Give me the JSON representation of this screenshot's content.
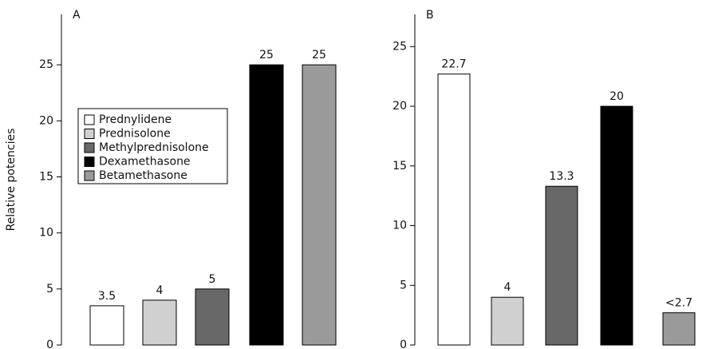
{
  "chart_data": [
    {
      "type": "bar",
      "title": "A",
      "ylabel": "Relative potencies",
      "series": [
        {
          "name": "Prednylidene",
          "color": "#ffffff",
          "values": [
            3.5
          ]
        },
        {
          "name": "Prednisolone",
          "color": "#d0d0d0",
          "values": [
            4
          ]
        },
        {
          "name": "Methylprednisolone",
          "color": "#686868",
          "values": [
            5
          ]
        },
        {
          "name": "Dexamethasone",
          "color": "#000000",
          "values": [
            25
          ]
        },
        {
          "name": "Betamethasone",
          "color": "#9a9a9a",
          "values": [
            25
          ]
        }
      ],
      "ylim": [
        0,
        29.5
      ],
      "yticks": [
        0,
        5,
        10,
        15,
        20,
        25
      ]
    },
    {
      "type": "bar",
      "title": "B",
      "values": [
        22.7,
        4,
        13.3,
        20,
        2.7
      ],
      "value_labels": [
        "22.7",
        "4",
        "13.3",
        "20",
        "<2.7"
      ],
      "colors": [
        "#ffffff",
        "#d0d0d0",
        "#686868",
        "#000000",
        "#9a9a9a"
      ],
      "ylim": [
        0,
        27.7
      ],
      "yticks": [
        0,
        5,
        10,
        15,
        20,
        25
      ]
    }
  ]
}
